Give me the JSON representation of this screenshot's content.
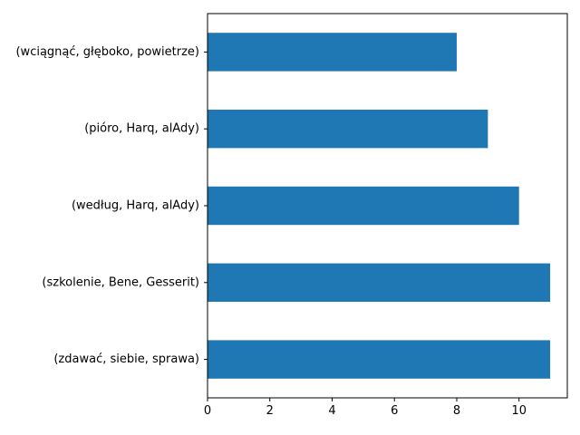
{
  "chart_data": {
    "type": "bar",
    "orientation": "horizontal",
    "title": "",
    "xlabel": "",
    "ylabel": "",
    "categories": [
      "(wciągnąć, głęboko, powietrze)",
      "(pióro, Harq, alAdy)",
      "(według, Harq, alAdy)",
      "(szkolenie, Bene, Gesserit)",
      "(zdawać, siebie, sprawa)"
    ],
    "values": [
      8,
      9,
      10,
      11,
      11
    ],
    "xlim": [
      0,
      11.55
    ],
    "xticks": [
      0,
      2,
      4,
      6,
      8,
      10
    ],
    "grid": false,
    "legend": "none",
    "bar_color": "#1f77b4"
  }
}
